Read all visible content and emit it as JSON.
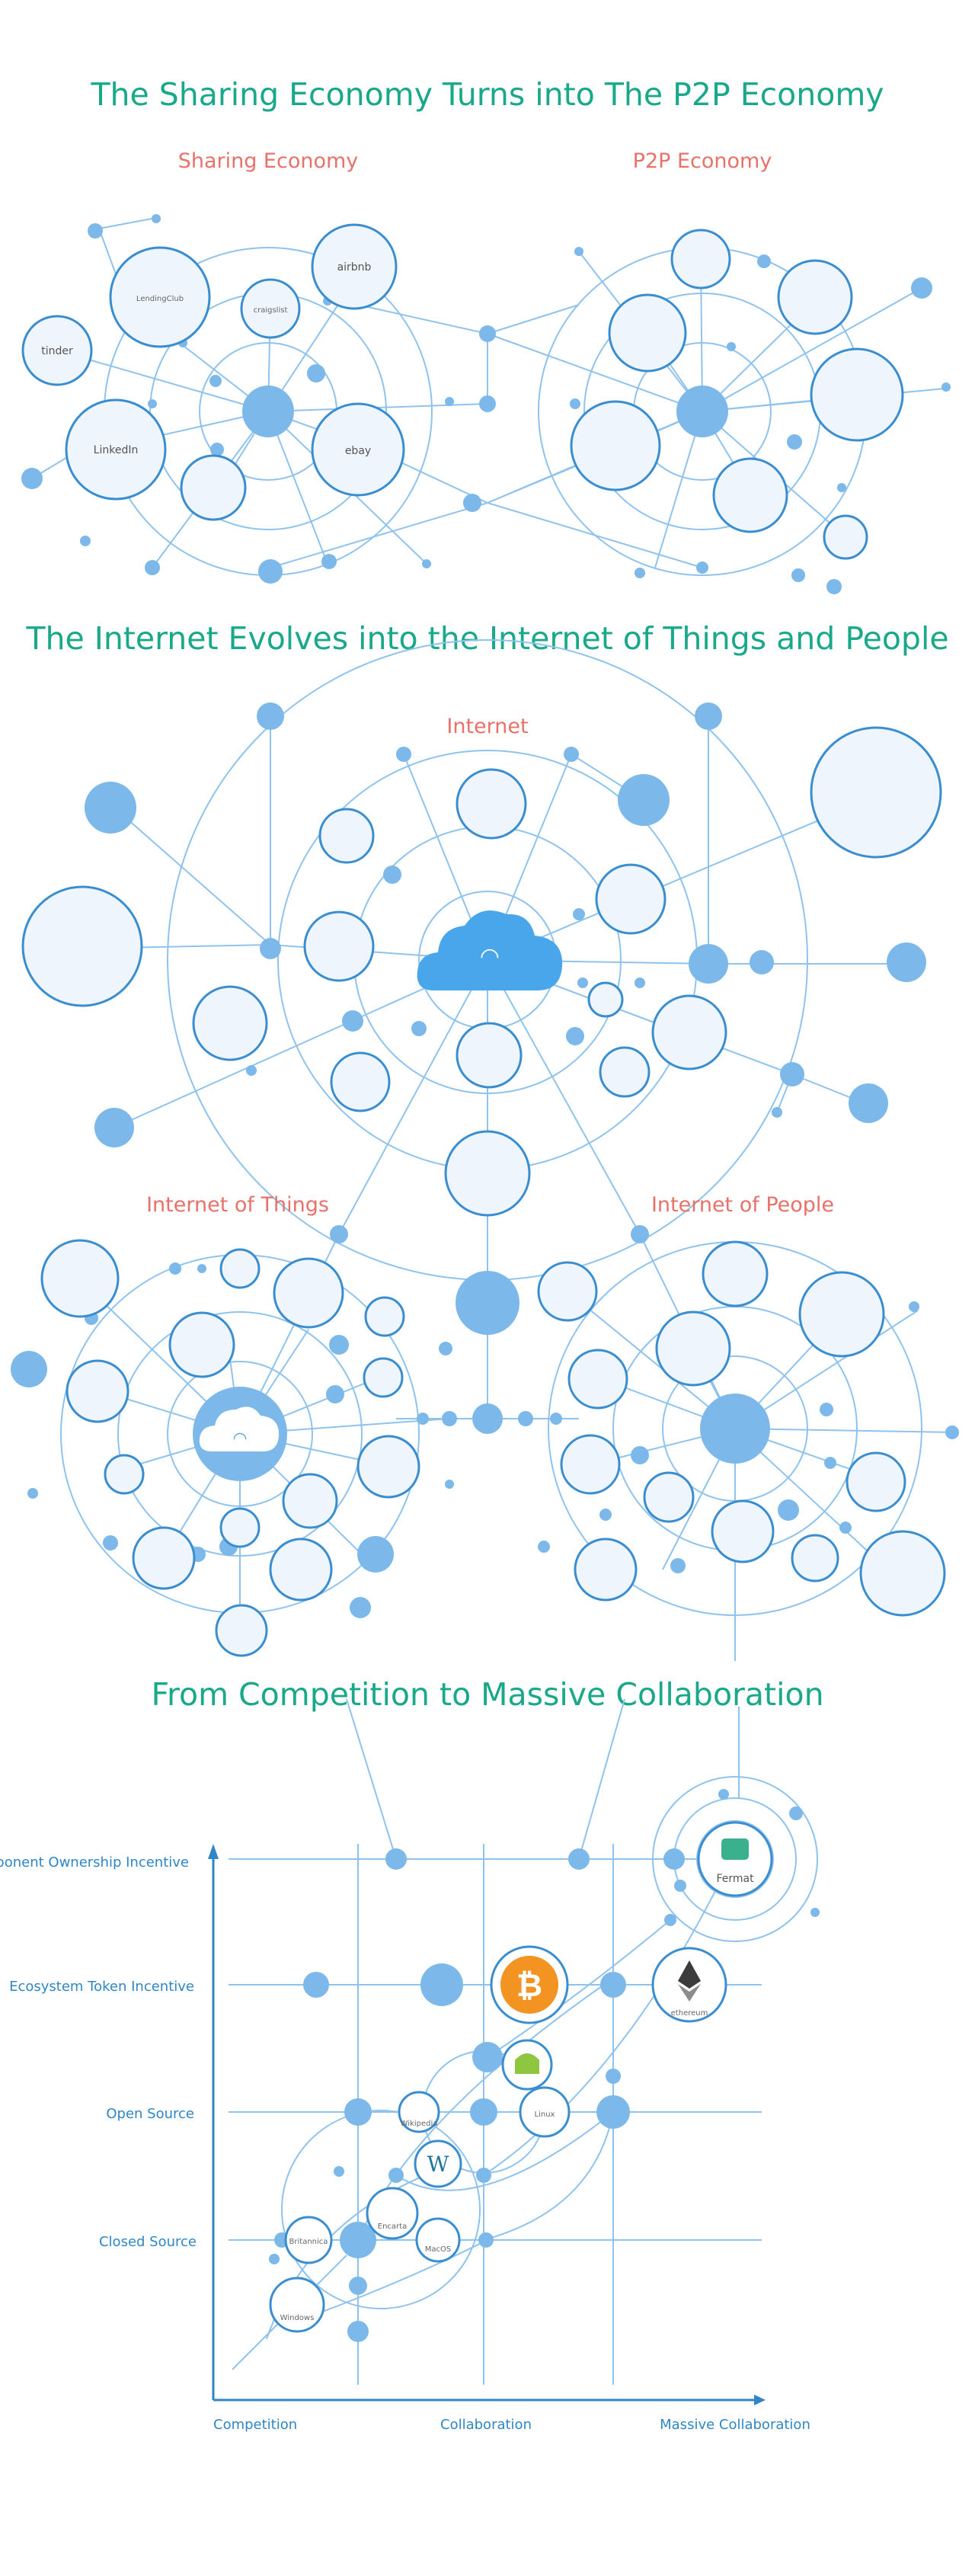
{
  "titles": {
    "sharing_to_p2p": "The Sharing Economy Turns into The P2P Economy",
    "internet_evolves": "The Internet Evolves into the Internet of Things and People",
    "competition": "From Competition to Massive Collaboration"
  },
  "subtitles": {
    "sharing": "Sharing Economy",
    "p2p": "P2P Economy",
    "internet": "Internet",
    "iot": "Internet of Things",
    "iop": "Internet of People"
  },
  "sharing_logos": [
    "tinder",
    "LendingClub",
    "airbnb",
    "craigslist",
    "LinkedIn",
    "ebay"
  ],
  "collab_chart": {
    "y_levels": [
      "Component Ownership Incentive",
      "Ecosystem Token Incentive",
      "Open Source",
      "Closed Source"
    ],
    "x_levels": [
      "Competition",
      "Collaboration",
      "Massive Collaboration"
    ],
    "projects": [
      {
        "name": "Windows",
        "label": "Windows"
      },
      {
        "name": "Encarta",
        "label": "Encarta"
      },
      {
        "name": "Britannica",
        "label": "Britannica"
      },
      {
        "name": "MacOS",
        "label": "MacOS"
      },
      {
        "name": "Wordpress",
        "label": "W"
      },
      {
        "name": "Wikipedia",
        "label": "Wikipedia"
      },
      {
        "name": "Linux",
        "label": "Linux"
      },
      {
        "name": "Android",
        "label": ""
      },
      {
        "name": "Bitcoin",
        "label": "₿"
      },
      {
        "name": "Ethereum",
        "label": "ethereum"
      },
      {
        "name": "Fermat",
        "label": "Fermat"
      }
    ]
  },
  "colors": {
    "title": "#1aa88a",
    "subtitle": "#e8716a",
    "node": "#7cb9ea",
    "line": "#8fc3ee",
    "axis": "#2f86c6",
    "bitcoin": "#f39321"
  }
}
